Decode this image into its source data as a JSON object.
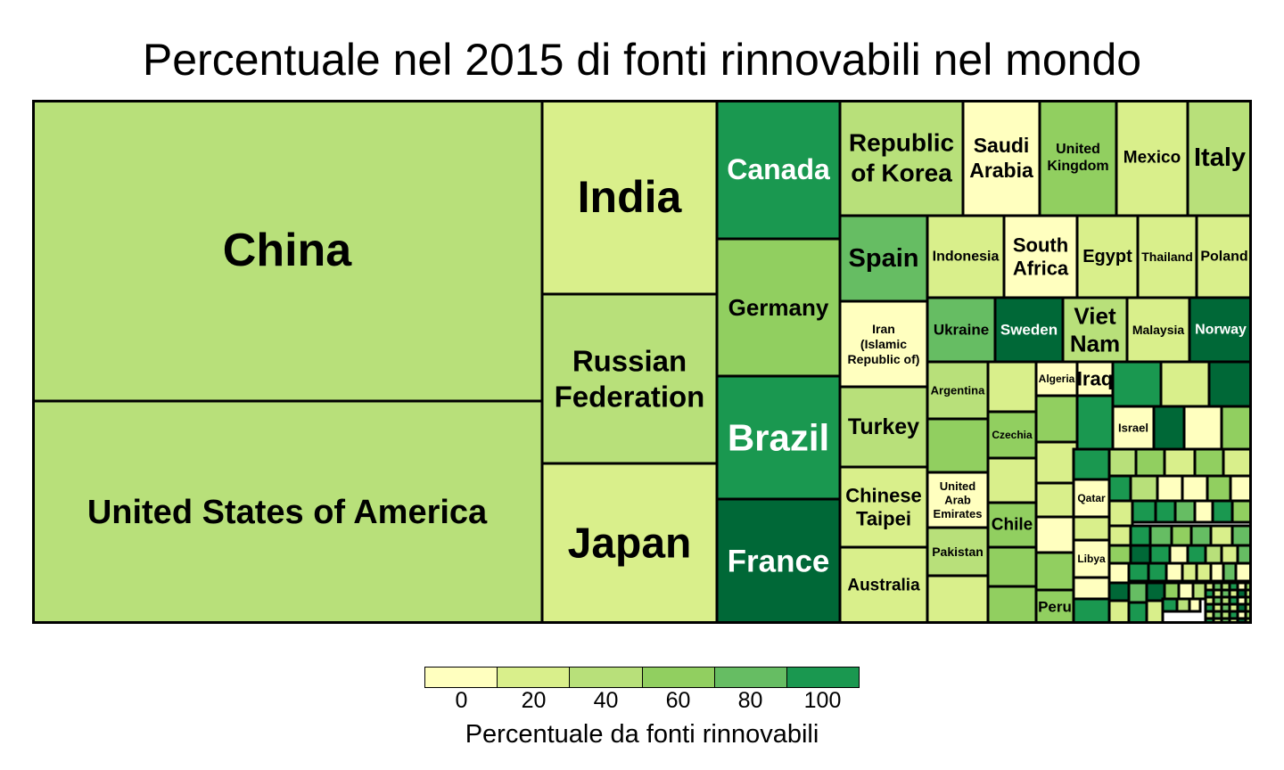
{
  "chart_data": {
    "type": "treemap",
    "title": "Percentuale nel 2015 di fonti rinnovabili nel mondo",
    "legend": {
      "title": "Percentuale da fonti rinnovabili",
      "ticks": [
        "0",
        "20",
        "40",
        "60",
        "80",
        "100"
      ],
      "colors": [
        "#ffffbf",
        "#d9ef8b",
        "#b8e07a",
        "#91cf60",
        "#66bd63",
        "#1a9850",
        "#006837"
      ]
    },
    "tiles": [
      {
        "label": "China",
        "value": 25
      },
      {
        "label": "United States of America",
        "value": 32
      },
      {
        "label": "India",
        "value": 16
      },
      {
        "label": "Russian Federation",
        "value": 33
      },
      {
        "label": "Japan",
        "value": 14
      },
      {
        "label": "Canada",
        "value": 88
      },
      {
        "label": "Germany",
        "value": 42
      },
      {
        "label": "Brazil",
        "value": 88
      },
      {
        "label": "France",
        "value": 94
      },
      {
        "label": "Republic of Korea",
        "value": 25
      },
      {
        "label": "Saudi Arabia",
        "value": 0
      },
      {
        "label": "United Kingdom",
        "value": 45
      },
      {
        "label": "Mexico",
        "value": 19
      },
      {
        "label": "Italy",
        "value": 40
      },
      {
        "label": "Spain",
        "value": 60
      },
      {
        "label": "Indonesia",
        "value": 15
      },
      {
        "label": "South Africa",
        "value": 6
      },
      {
        "label": "Egypt",
        "value": 9
      },
      {
        "label": "Thailand",
        "value": 10
      },
      {
        "label": "Poland",
        "value": 15
      },
      {
        "label": "Iran (Islamic Republic of)",
        "value": 7
      },
      {
        "label": "Ukraine",
        "value": 62
      },
      {
        "label": "Sweden",
        "value": 97
      },
      {
        "label": "Viet Nam",
        "value": 40
      },
      {
        "label": "Malaysia",
        "value": 12
      },
      {
        "label": "Norway",
        "value": 98
      },
      {
        "label": "Turkey",
        "value": 33
      },
      {
        "label": "Argentina",
        "value": 33
      },
      {
        "label": "Algeria",
        "value": 1
      },
      {
        "label": "Iraq",
        "value": 7
      },
      {
        "label": "Chinese Taipei",
        "value": 20
      },
      {
        "label": "Czechia",
        "value": 45
      },
      {
        "label": "Israel",
        "value": 2
      },
      {
        "label": "United Arab Emirates",
        "value": 0
      },
      {
        "label": "Chile",
        "value": 48
      },
      {
        "label": "Qatar",
        "value": 0
      },
      {
        "label": "Pakistan",
        "value": 35
      },
      {
        "label": "Libya",
        "value": 0
      },
      {
        "label": "Australia",
        "value": 17
      },
      {
        "label": "Peru",
        "value": 50
      }
    ]
  }
}
